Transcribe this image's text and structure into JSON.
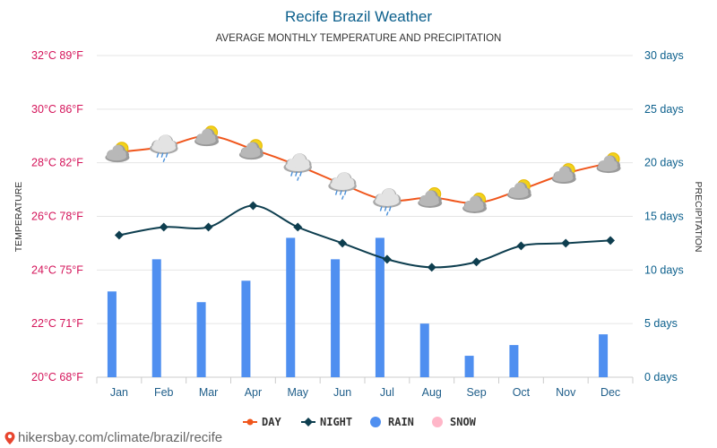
{
  "title": "Recife Brazil Weather",
  "subtitle": "AVERAGE MONTHLY TEMPERATURE AND PRECIPITATION",
  "footer_text": "hikersbay.com/climate/brazil/recife",
  "colors": {
    "title": "#0b5f8c",
    "left_axis": "#d4145a",
    "right_axis": "#0b5f8c",
    "month_label": "#1f5e8a",
    "grid": "#e5e5e5",
    "day": "#f0561c",
    "night": "#0e3e4f",
    "rain": "#4f8ff0",
    "snow": "#ffb6c8"
  },
  "chart_data": {
    "type": "line",
    "categories": [
      "Jan",
      "Feb",
      "Mar",
      "Apr",
      "May",
      "Jun",
      "Jul",
      "Aug",
      "Sep",
      "Oct",
      "Nov",
      "Dec"
    ],
    "left_axis": {
      "label": "TEMPERATURE",
      "ticks": [
        {
          "value": 20,
          "label": "20°C 68°F"
        },
        {
          "value": 22,
          "label": "22°C 71°F"
        },
        {
          "value": 24,
          "label": "24°C 75°F"
        },
        {
          "value": 26,
          "label": "26°C 78°F"
        },
        {
          "value": 28,
          "label": "28°C 82°F"
        },
        {
          "value": 30,
          "label": "30°C 86°F"
        },
        {
          "value": 32,
          "label": "32°C 89°F"
        }
      ],
      "range": [
        20,
        32
      ]
    },
    "right_axis": {
      "label": "PRECIPITATION",
      "ticks": [
        {
          "value": 0,
          "label": "0 days"
        },
        {
          "value": 5,
          "label": "5 days"
        },
        {
          "value": 10,
          "label": "10 days"
        },
        {
          "value": 15,
          "label": "15 days"
        },
        {
          "value": 20,
          "label": "20 days"
        },
        {
          "value": 25,
          "label": "25 days"
        },
        {
          "value": 30,
          "label": "30 days"
        }
      ],
      "range": [
        0,
        30
      ]
    },
    "series": [
      {
        "name": "DAY",
        "type": "line",
        "axis": "left",
        "values": [
          28.4,
          28.6,
          29.0,
          28.5,
          27.9,
          27.2,
          26.6,
          26.7,
          26.5,
          27.0,
          27.6,
          28.0
        ]
      },
      {
        "name": "NIGHT",
        "type": "line",
        "axis": "left",
        "values": [
          25.3,
          25.6,
          25.6,
          26.4,
          25.6,
          25.0,
          24.4,
          24.1,
          24.3,
          24.9,
          25.0,
          25.1
        ]
      },
      {
        "name": "RAIN",
        "type": "bar",
        "axis": "right",
        "values": [
          8,
          11,
          7,
          9,
          13,
          11,
          13,
          5,
          2,
          3,
          0,
          4
        ]
      },
      {
        "name": "SNOW",
        "type": "bar",
        "axis": "right",
        "values": [
          0,
          0,
          0,
          0,
          0,
          0,
          0,
          0,
          0,
          0,
          0,
          0
        ]
      }
    ],
    "weather_icons": [
      "partly-cloudy-icon",
      "rain-cloud-icon",
      "partly-cloudy-icon",
      "partly-cloudy-icon",
      "rain-cloud-icon",
      "rain-cloud-icon",
      "rain-cloud-icon",
      "partly-cloudy-icon",
      "partly-cloudy-icon",
      "partly-cloudy-icon",
      "partly-cloudy-icon",
      "partly-cloudy-icon"
    ],
    "legend_position": "bottom",
    "grid": true
  }
}
